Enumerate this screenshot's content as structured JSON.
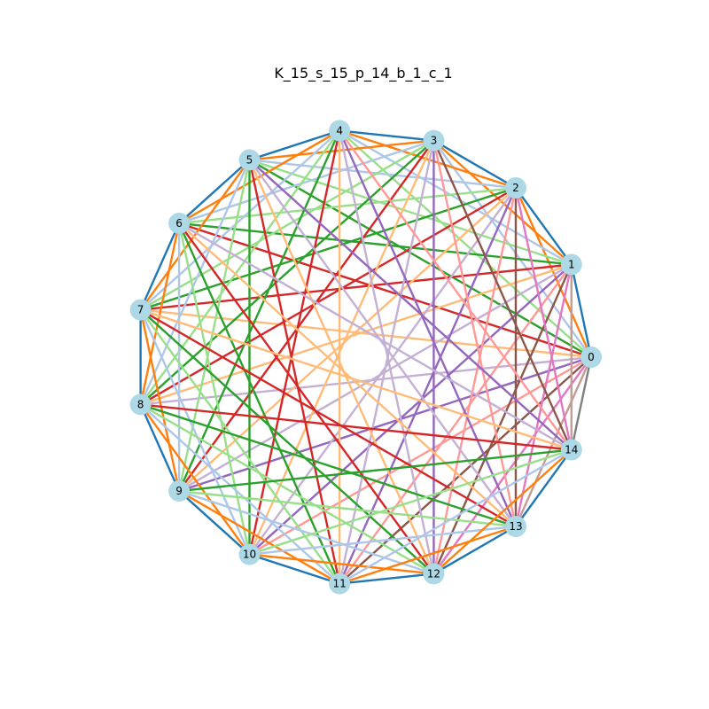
{
  "title": "K_15_s_15_p_14_b_1_c_1",
  "graph": {
    "type": "complete",
    "node_count": 15,
    "labels": [
      "0",
      "1",
      "2",
      "3",
      "4",
      "5",
      "6",
      "7",
      "8",
      "9",
      "10",
      "11",
      "12",
      "13",
      "14"
    ],
    "node_fill": "#add8e6",
    "step_colors": {
      "1": "#1f77b4",
      "2": "#ff7f0e",
      "3": "#aec7e8",
      "4": "#98df8a",
      "5": "#2ca02c",
      "6": "#d62728",
      "7": "#ffbb78",
      "8": "#c5b0d5",
      "9": "#9467bd",
      "10": "#ff9896",
      "11": "#8c564b",
      "12": "#e377c2",
      "13": "#c49c94",
      "14": "#7f7f7f",
      "15": "#f7b6d2"
    }
  }
}
